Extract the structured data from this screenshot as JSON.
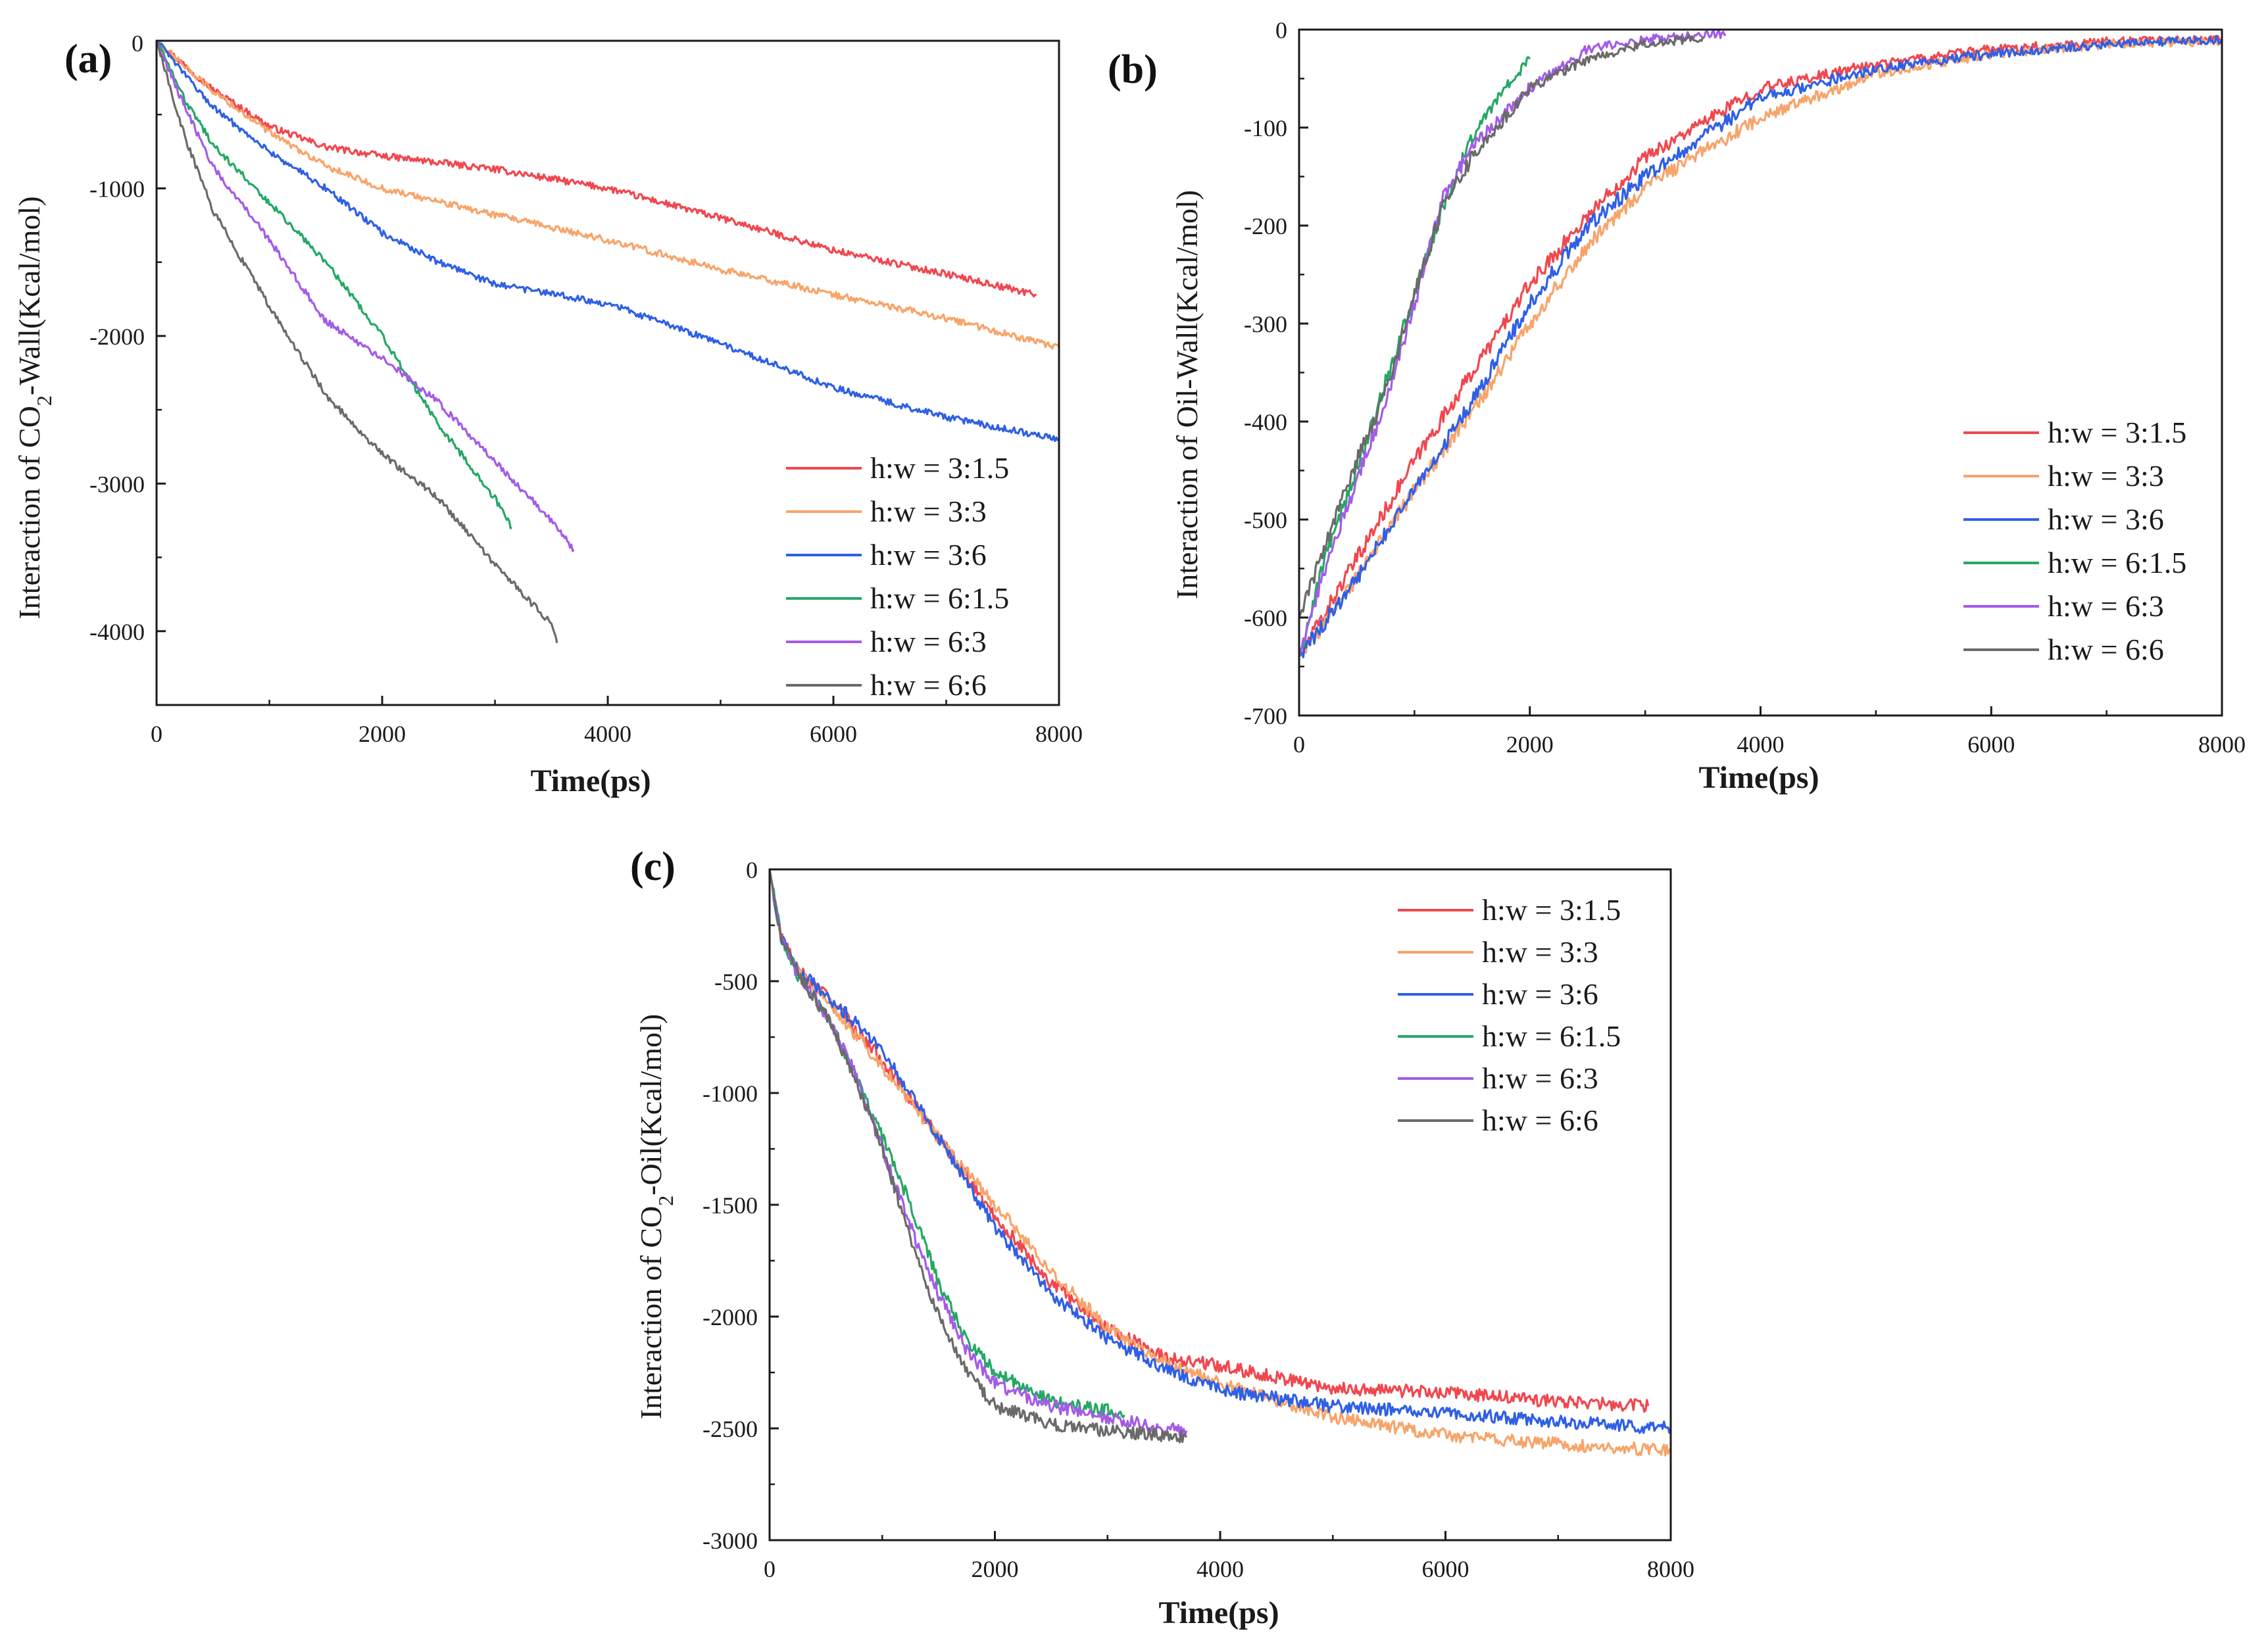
{
  "colors": {
    "h3_1_5": "#f0474f",
    "h3_3": "#f7a46a",
    "h3_6": "#2f5fe6",
    "h6_1_5": "#25a865",
    "h6_3": "#a35be8",
    "h6_6": "#6a6a6a"
  },
  "chart_data": [
    {
      "type": "line",
      "panel_label": "(a)",
      "title": "",
      "xlabel": "Time(ps)",
      "ylabel_prefix": "Interaction of CO",
      "ylabel_sub": "2",
      "ylabel_suffix": "-Wall(Kcal/mol)",
      "xlim": [
        0,
        8000
      ],
      "ylim": [
        -4500,
        0
      ],
      "xticks": [
        0,
        2000,
        4000,
        6000,
        8000
      ],
      "yticks": [
        0,
        -1000,
        -2000,
        -3000,
        -4000
      ],
      "legend_position": "lower-right",
      "series": [
        {
          "name": "h:w = 3:1.5",
          "color_key": "h3_1_5",
          "x": [
            0,
            500,
            1000,
            1500,
            2000,
            3000,
            4000,
            5000,
            6000,
            7000,
            7800
          ],
          "y": [
            0,
            -330,
            -580,
            -720,
            -780,
            -870,
            -1000,
            -1200,
            -1420,
            -1580,
            -1720
          ]
        },
        {
          "name": "h:w = 3:3",
          "color_key": "h3_3",
          "x": [
            0,
            500,
            1000,
            1500,
            2000,
            3000,
            4000,
            5000,
            6000,
            7000,
            8000
          ],
          "y": [
            0,
            -340,
            -620,
            -850,
            -1000,
            -1180,
            -1350,
            -1550,
            -1720,
            -1880,
            -2080
          ]
        },
        {
          "name": "h:w = 3:6",
          "color_key": "h3_6",
          "x": [
            0,
            500,
            1000,
            1500,
            2000,
            2500,
            3000,
            4000,
            5000,
            6000,
            7000,
            8000
          ],
          "y": [
            0,
            -450,
            -750,
            -1000,
            -1300,
            -1500,
            -1650,
            -1780,
            -2050,
            -2350,
            -2550,
            -2700
          ]
        },
        {
          "name": "h:w = 6:1.5",
          "color_key": "h6_1_5",
          "x": [
            0,
            250,
            500,
            1000,
            1500,
            2000,
            2500,
            3000,
            3150
          ],
          "y": [
            0,
            -400,
            -700,
            -1100,
            -1500,
            -2000,
            -2600,
            -3100,
            -3300
          ]
        },
        {
          "name": "h:w = 6:3",
          "color_key": "h6_3",
          "x": [
            0,
            250,
            500,
            1000,
            1500,
            2000,
            2500,
            3000,
            3500,
            3700
          ],
          "y": [
            0,
            -450,
            -850,
            -1350,
            -1900,
            -2150,
            -2450,
            -2850,
            -3250,
            -3450
          ]
        },
        {
          "name": "h:w = 6:6",
          "color_key": "h6_6",
          "x": [
            0,
            250,
            500,
            1000,
            1500,
            2000,
            2500,
            3000,
            3500,
            3550
          ],
          "y": [
            0,
            -650,
            -1150,
            -1800,
            -2400,
            -2800,
            -3100,
            -3550,
            -3950,
            -4080
          ]
        }
      ]
    },
    {
      "type": "line",
      "panel_label": "(b)",
      "title": "",
      "xlabel": "Time(ps)",
      "ylabel": "Interaction of Oil-Wall(Kcal/mol)",
      "xlim": [
        0,
        8000
      ],
      "ylim": [
        -700,
        0
      ],
      "xticks": [
        0,
        2000,
        4000,
        6000,
        8000
      ],
      "yticks": [
        0,
        -100,
        -200,
        -300,
        -400,
        -500,
        -600,
        -700
      ],
      "legend_position": "right",
      "series": [
        {
          "name": "h:w = 3:1.5",
          "color_key": "h3_1_5",
          "x": [
            0,
            500,
            1000,
            1500,
            2000,
            2500,
            3000,
            4000,
            5000,
            6000,
            7000,
            8000
          ],
          "y": [
            -640,
            -540,
            -440,
            -350,
            -260,
            -190,
            -130,
            -60,
            -35,
            -20,
            -12,
            -10
          ]
        },
        {
          "name": "h:w = 3:3",
          "color_key": "h3_3",
          "x": [
            0,
            500,
            1000,
            1500,
            2000,
            2500,
            3000,
            4000,
            5000,
            6000,
            7000,
            8000
          ],
          "y": [
            -640,
            -560,
            -470,
            -390,
            -300,
            -220,
            -160,
            -90,
            -45,
            -25,
            -15,
            -12
          ]
        },
        {
          "name": "h:w = 3:6",
          "color_key": "h3_6",
          "x": [
            0,
            500,
            1000,
            1500,
            2000,
            2500,
            3000,
            4000,
            5000,
            6000,
            7000,
            8000
          ],
          "y": [
            -640,
            -560,
            -470,
            -380,
            -280,
            -200,
            -150,
            -70,
            -40,
            -25,
            -15,
            -10
          ]
        },
        {
          "name": "h:w = 6:1.5",
          "color_key": "h6_1_5",
          "x": [
            0,
            250,
            500,
            750,
            1000,
            1250,
            1500,
            1750,
            2000
          ],
          "y": [
            -640,
            -530,
            -450,
            -360,
            -270,
            -180,
            -110,
            -65,
            -30
          ]
        },
        {
          "name": "h:w = 6:3",
          "color_key": "h6_3",
          "x": [
            0,
            250,
            500,
            750,
            1000,
            1250,
            1500,
            2000,
            2500,
            3000,
            3500,
            3700
          ],
          "y": [
            -640,
            -540,
            -460,
            -380,
            -280,
            -170,
            -120,
            -60,
            -20,
            -10,
            -5,
            -5
          ]
        },
        {
          "name": "h:w = 6:6",
          "color_key": "h6_6",
          "x": [
            0,
            250,
            500,
            750,
            1000,
            1250,
            1500,
            2000,
            2500,
            3000,
            3500
          ],
          "y": [
            -600,
            -520,
            -440,
            -370,
            -270,
            -180,
            -130,
            -60,
            -30,
            -15,
            -8
          ]
        }
      ]
    },
    {
      "type": "line",
      "panel_label": "(c)",
      "title": "",
      "xlabel": "Time(ps)",
      "ylabel_prefix": "Interaction of CO",
      "ylabel_sub": "2",
      "ylabel_suffix": "-Oil(Kcal/mol)",
      "xlim": [
        0,
        8000
      ],
      "ylim": [
        -3000,
        0
      ],
      "xticks": [
        0,
        2000,
        4000,
        6000,
        8000
      ],
      "yticks": [
        0,
        -500,
        -1000,
        -1500,
        -2000,
        -2500,
        -3000
      ],
      "legend_position": "top-right",
      "series": [
        {
          "name": "h:w = 3:1.5",
          "color_key": "h3_1_5",
          "x": [
            0,
            100,
            250,
            500,
            1000,
            1500,
            2000,
            2500,
            3000,
            3500,
            4000,
            5000,
            6000,
            7000,
            7800
          ],
          "y": [
            0,
            -300,
            -450,
            -560,
            -850,
            -1200,
            -1550,
            -1850,
            -2050,
            -2180,
            -2220,
            -2320,
            -2340,
            -2380,
            -2400
          ]
        },
        {
          "name": "h:w = 3:3",
          "color_key": "h3_3",
          "x": [
            0,
            100,
            250,
            500,
            1000,
            1500,
            2000,
            2500,
            3000,
            3500,
            4000,
            5000,
            6000,
            7000,
            8000
          ],
          "y": [
            0,
            -300,
            -450,
            -580,
            -880,
            -1200,
            -1500,
            -1800,
            -2050,
            -2200,
            -2300,
            -2450,
            -2530,
            -2570,
            -2600
          ]
        },
        {
          "name": "h:w = 3:6",
          "color_key": "h3_6",
          "x": [
            0,
            100,
            250,
            500,
            1000,
            1500,
            2000,
            2500,
            3000,
            3500,
            4000,
            5000,
            6000,
            7000,
            8000
          ],
          "y": [
            0,
            -300,
            -450,
            -560,
            -800,
            -1200,
            -1600,
            -1900,
            -2100,
            -2230,
            -2330,
            -2400,
            -2430,
            -2470,
            -2500
          ]
        },
        {
          "name": "h:w = 6:1.5",
          "color_key": "h6_1_5",
          "x": [
            0,
            100,
            250,
            500,
            750,
            1000,
            1250,
            1500,
            1750,
            2000,
            2500,
            3000,
            3150
          ],
          "y": [
            0,
            -300,
            -470,
            -650,
            -900,
            -1200,
            -1500,
            -1850,
            -2100,
            -2250,
            -2380,
            -2420,
            -2440
          ]
        },
        {
          "name": "h:w = 6:3",
          "color_key": "h6_3",
          "x": [
            0,
            100,
            250,
            500,
            750,
            1000,
            1250,
            1500,
            1750,
            2000,
            2500,
            3000,
            3500,
            3700
          ],
          "y": [
            0,
            -300,
            -470,
            -650,
            -900,
            -1250,
            -1600,
            -1900,
            -2150,
            -2300,
            -2400,
            -2450,
            -2500,
            -2510
          ]
        },
        {
          "name": "h:w = 6:6",
          "color_key": "h6_6",
          "x": [
            0,
            100,
            250,
            500,
            750,
            1000,
            1250,
            1500,
            1750,
            2000,
            2500,
            3000,
            3500,
            3700
          ],
          "y": [
            0,
            -300,
            -470,
            -650,
            -920,
            -1250,
            -1650,
            -2000,
            -2250,
            -2400,
            -2480,
            -2510,
            -2530,
            -2540
          ]
        }
      ]
    }
  ]
}
